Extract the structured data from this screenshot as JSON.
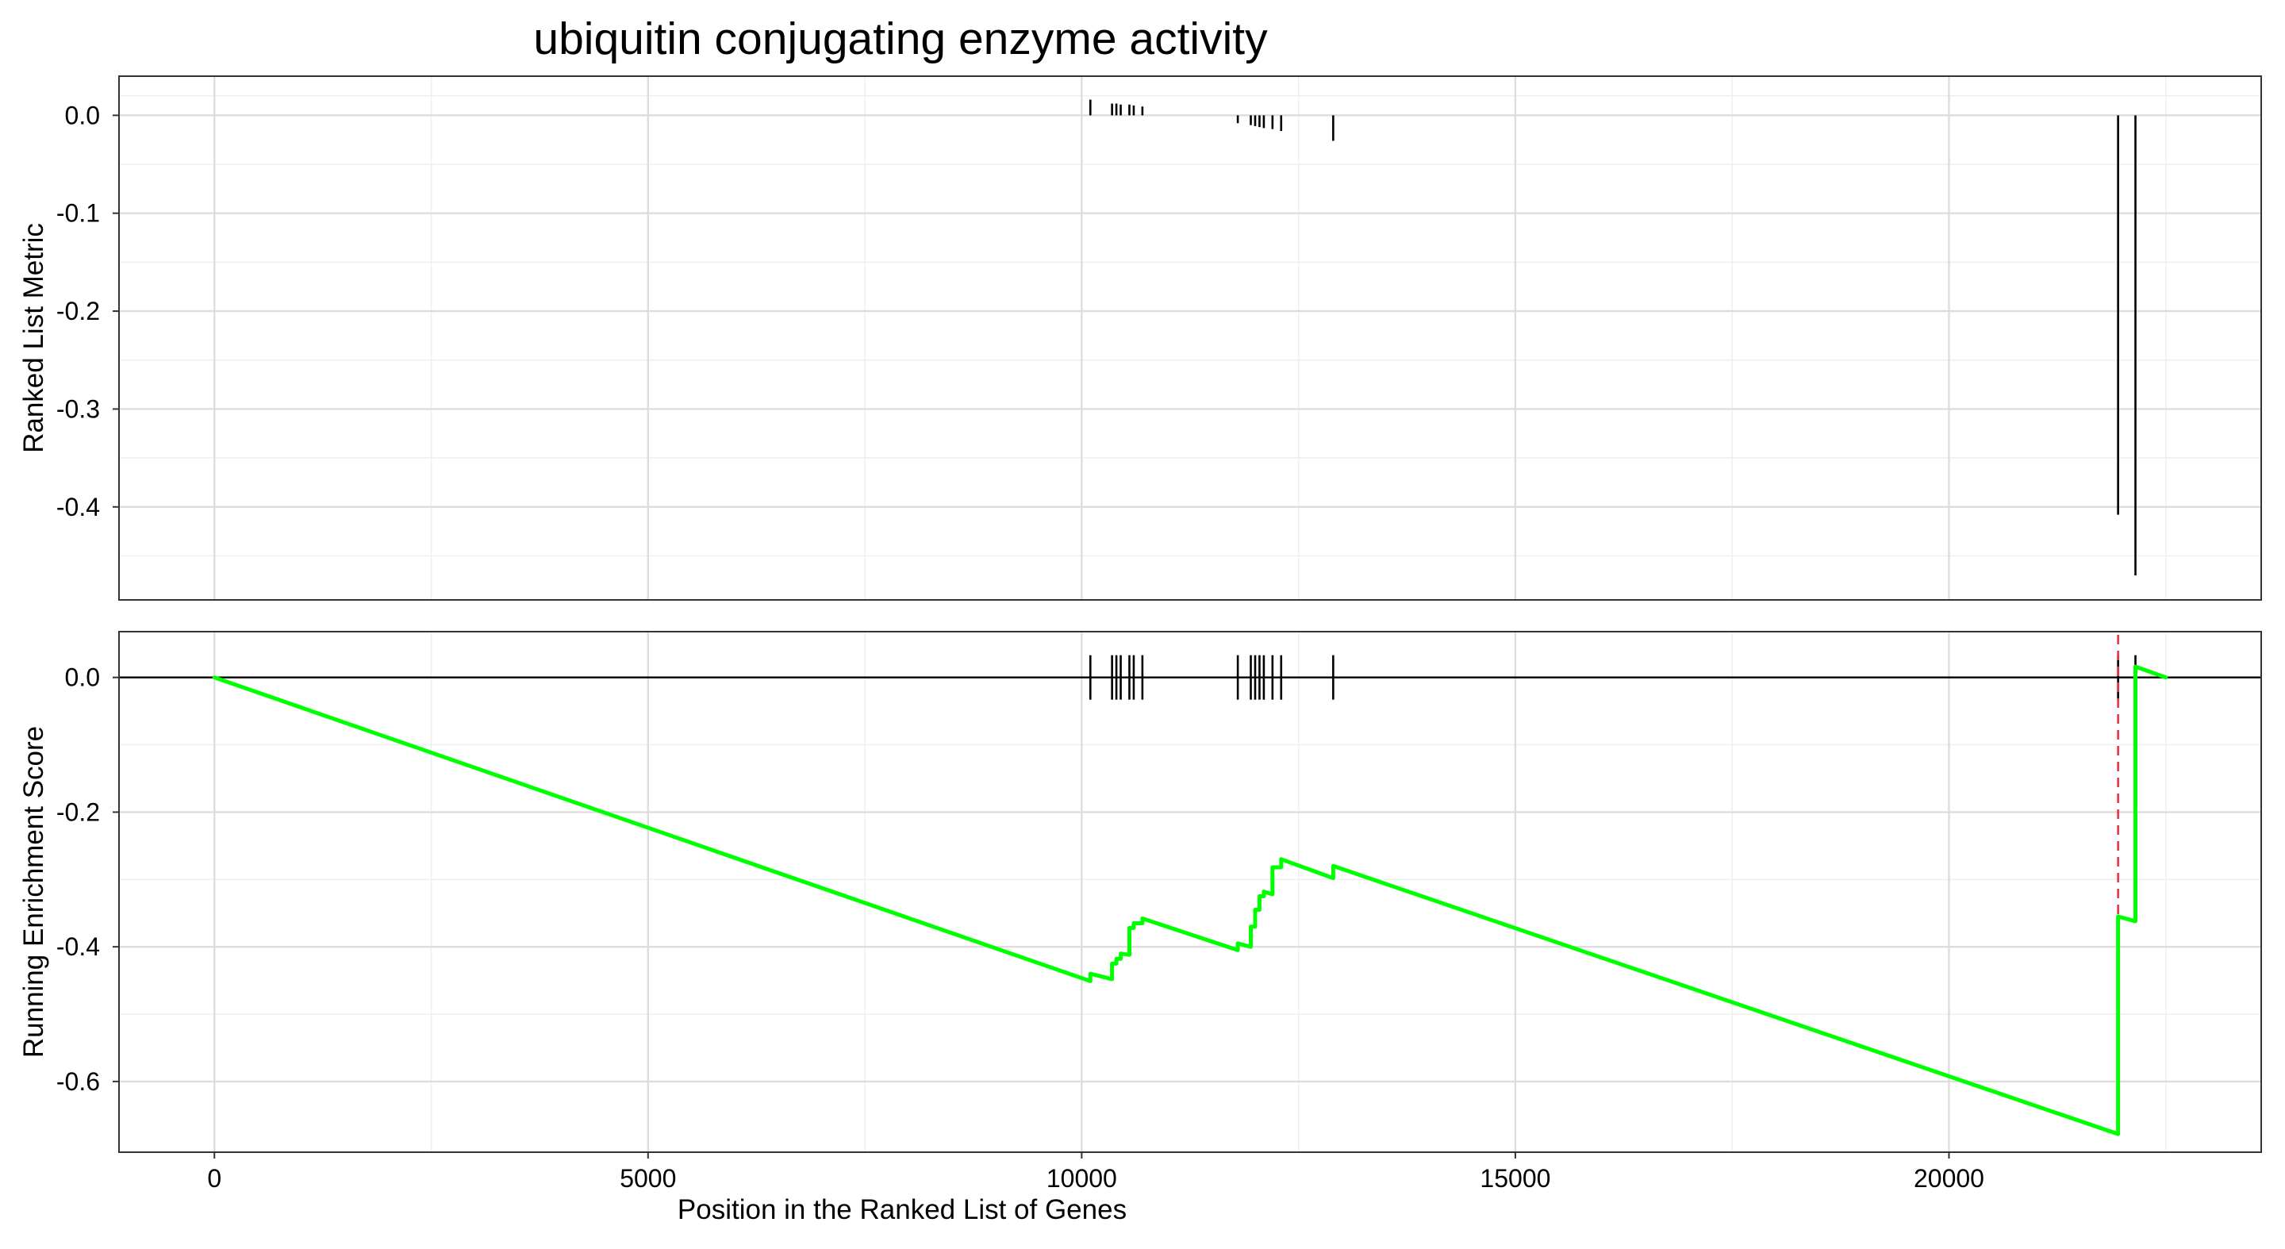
{
  "chart_data": {
    "type": "line",
    "title": "ubiquitin conjugating enzyme activity",
    "xlabel": "Position in the Ranked List of Genes",
    "x_ticks": [
      0,
      5000,
      10000,
      15000,
      20000
    ],
    "xlim": [
      -1100,
      23600
    ],
    "grid": true,
    "colors": {
      "running_score_line": "#00FF00",
      "peak_marker": "#E8334A",
      "segments": "#000000",
      "grid_major": "#DDDDDD",
      "grid_minor": "#EEEEEE",
      "panel_border": "#333333"
    },
    "panels": [
      {
        "name": "ranked-list-metric",
        "type": "segments",
        "ylabel": "Ranked List Metric",
        "ylim": [
          -0.495,
          0.04
        ],
        "y_ticks": [
          "0.0",
          "-0.1",
          "-0.2",
          "-0.3",
          "-0.4"
        ],
        "y_tick_values": [
          0.0,
          -0.1,
          -0.2,
          -0.3,
          -0.4
        ],
        "y_minor": [
          0.02,
          -0.05,
          -0.15,
          -0.25,
          -0.35,
          -0.45
        ],
        "values": [
          {
            "x": 10100,
            "y": 0.016
          },
          {
            "x": 10350,
            "y": 0.012
          },
          {
            "x": 10400,
            "y": 0.012
          },
          {
            "x": 10450,
            "y": 0.011
          },
          {
            "x": 10550,
            "y": 0.011
          },
          {
            "x": 10600,
            "y": 0.01
          },
          {
            "x": 10700,
            "y": 0.009
          },
          {
            "x": 11800,
            "y": -0.008
          },
          {
            "x": 11950,
            "y": -0.01
          },
          {
            "x": 12000,
            "y": -0.011
          },
          {
            "x": 12050,
            "y": -0.012
          },
          {
            "x": 12100,
            "y": -0.013
          },
          {
            "x": 12200,
            "y": -0.014
          },
          {
            "x": 12300,
            "y": -0.016
          },
          {
            "x": 12900,
            "y": -0.026
          },
          {
            "x": 21950,
            "y": -0.408
          },
          {
            "x": 22150,
            "y": -0.47
          }
        ]
      },
      {
        "name": "running-enrichment-score",
        "type": "line",
        "ylabel": "Running Enrichment Score",
        "ylim": [
          -0.705,
          0.068
        ],
        "y_ticks": [
          "0.0",
          "-0.2",
          "-0.4",
          "-0.6"
        ],
        "y_tick_values": [
          0.0,
          -0.2,
          -0.4,
          -0.6
        ],
        "y_minor": [
          -0.1,
          -0.3,
          -0.5
        ],
        "hits": [
          10100,
          10350,
          10400,
          10450,
          10550,
          10600,
          10700,
          11800,
          11950,
          12000,
          12050,
          12100,
          12200,
          12300,
          12900,
          21950,
          22150
        ],
        "peak_x": 21950,
        "series": [
          {
            "x": [
              0,
              10100,
              10100,
              10350,
              10350,
              10400,
              10400,
              10450,
              10450,
              10550,
              10550,
              10600,
              10600,
              10700,
              10700,
              11800,
              11800,
              11950,
              11950,
              12000,
              12000,
              12050,
              12050,
              12100,
              12100,
              12200,
              12200,
              12300,
              12300,
              12900,
              12900,
              21950,
              21950,
              22150,
              22150,
              22500
            ],
            "y": [
              0.0,
              -0.451,
              -0.44,
              -0.448,
              -0.425,
              -0.425,
              -0.418,
              -0.418,
              -0.41,
              -0.412,
              -0.372,
              -0.372,
              -0.365,
              -0.365,
              -0.358,
              -0.405,
              -0.395,
              -0.4,
              -0.37,
              -0.37,
              -0.345,
              -0.345,
              -0.325,
              -0.325,
              -0.318,
              -0.322,
              -0.282,
              -0.282,
              -0.27,
              -0.298,
              -0.28,
              -0.678,
              -0.355,
              -0.362,
              0.016,
              0.0
            ]
          }
        ]
      }
    ]
  }
}
